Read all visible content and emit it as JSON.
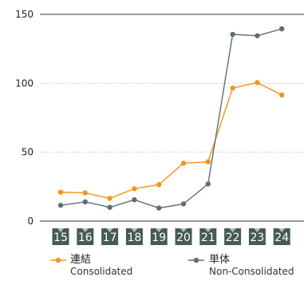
{
  "chart_data": {
    "type": "line",
    "title": "",
    "xlabel": "",
    "ylabel": "",
    "categories": [
      "15",
      "16",
      "17",
      "18",
      "19",
      "20",
      "21",
      "22",
      "23",
      "24"
    ],
    "ylim": [
      0,
      150
    ],
    "yticks": [
      "0",
      "50",
      "100",
      "150"
    ],
    "grid": true,
    "legend_position": "bottom",
    "series": [
      {
        "name": "連結",
        "name_en": "Consolidated",
        "color": "#F0961E",
        "values": [
          21,
          20.5,
          16.5,
          23.5,
          26.5,
          42,
          43,
          96.5,
          100.5,
          91.5
        ]
      },
      {
        "name": "単体",
        "name_en": "Non-Consolidated",
        "color": "#5F6E76",
        "values": [
          11.5,
          14,
          10,
          15.5,
          9.5,
          12.5,
          27,
          135.5,
          134.5,
          139.5
        ]
      }
    ]
  },
  "colors": {
    "badge_bg": "#465B54",
    "badge_pointer": "#B7C2BE",
    "grid": "#C8C8C8",
    "axis": "#333333"
  }
}
